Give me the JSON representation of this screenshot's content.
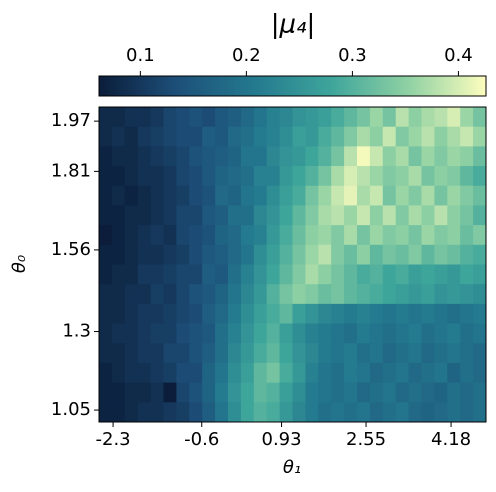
{
  "chart_data": {
    "type": "heatmap",
    "colorbar_label": "|μ₄|",
    "xlabel": "θ₁",
    "ylabel": "θ₀",
    "xlim": [
      -2.57,
      4.85
    ],
    "ylim": [
      1.012,
      2.015
    ],
    "xticks": [
      -2.3,
      -0.6,
      0.93,
      2.55,
      4.18
    ],
    "yticks": [
      1.05,
      1.3,
      1.56,
      1.81,
      1.97
    ],
    "clim": [
      0.061,
      0.426
    ],
    "cticks": [
      0.1,
      0.2,
      0.3,
      0.4
    ],
    "colorscale": [
      "#0b1d3a",
      "#1d4f79",
      "#23798e",
      "#3ea59b",
      "#8fd1a3",
      "#fdfdbe"
    ],
    "z": [
      [
        0.08,
        0.08,
        0.09,
        0.09,
        0.1,
        0.12,
        0.13,
        0.14,
        0.13,
        0.15,
        0.16,
        0.18,
        0.2,
        0.22,
        0.23,
        0.25,
        0.26,
        0.27,
        0.29,
        0.31,
        0.33,
        0.36,
        0.33,
        0.38,
        0.35,
        0.37,
        0.38,
        0.4,
        0.36,
        0.33
      ],
      [
        0.08,
        0.09,
        0.08,
        0.1,
        0.11,
        0.12,
        0.13,
        0.13,
        0.16,
        0.15,
        0.18,
        0.19,
        0.21,
        0.22,
        0.24,
        0.27,
        0.26,
        0.29,
        0.31,
        0.34,
        0.37,
        0.35,
        0.39,
        0.34,
        0.36,
        0.38,
        0.35,
        0.37,
        0.39,
        0.36
      ],
      [
        0.07,
        0.08,
        0.08,
        0.09,
        0.1,
        0.11,
        0.12,
        0.14,
        0.15,
        0.16,
        0.17,
        0.2,
        0.2,
        0.23,
        0.25,
        0.26,
        0.28,
        0.3,
        0.33,
        0.38,
        0.42,
        0.39,
        0.35,
        0.37,
        0.33,
        0.36,
        0.34,
        0.36,
        0.35,
        0.32
      ],
      [
        0.07,
        0.07,
        0.08,
        0.09,
        0.09,
        0.1,
        0.12,
        0.13,
        0.15,
        0.17,
        0.18,
        0.19,
        0.22,
        0.22,
        0.26,
        0.28,
        0.3,
        0.33,
        0.37,
        0.4,
        0.38,
        0.36,
        0.34,
        0.35,
        0.37,
        0.33,
        0.35,
        0.34,
        0.31,
        0.29
      ],
      [
        0.07,
        0.08,
        0.07,
        0.08,
        0.09,
        0.1,
        0.11,
        0.13,
        0.14,
        0.18,
        0.17,
        0.2,
        0.21,
        0.24,
        0.27,
        0.29,
        0.33,
        0.36,
        0.39,
        0.41,
        0.37,
        0.39,
        0.33,
        0.36,
        0.34,
        0.37,
        0.33,
        0.36,
        0.34,
        0.32
      ],
      [
        0.07,
        0.07,
        0.08,
        0.08,
        0.09,
        0.1,
        0.12,
        0.12,
        0.15,
        0.16,
        0.19,
        0.19,
        0.23,
        0.25,
        0.28,
        0.31,
        0.34,
        0.37,
        0.38,
        0.36,
        0.39,
        0.35,
        0.38,
        0.34,
        0.37,
        0.35,
        0.38,
        0.35,
        0.33,
        0.3
      ],
      [
        0.06,
        0.07,
        0.08,
        0.09,
        0.1,
        0.09,
        0.12,
        0.13,
        0.14,
        0.17,
        0.18,
        0.21,
        0.22,
        0.26,
        0.29,
        0.32,
        0.35,
        0.36,
        0.34,
        0.37,
        0.33,
        0.36,
        0.34,
        0.35,
        0.33,
        0.36,
        0.34,
        0.35,
        0.32,
        0.34
      ],
      [
        0.07,
        0.07,
        0.08,
        0.09,
        0.09,
        0.1,
        0.11,
        0.13,
        0.15,
        0.16,
        0.18,
        0.2,
        0.24,
        0.27,
        0.3,
        0.33,
        0.36,
        0.38,
        0.34,
        0.32,
        0.35,
        0.31,
        0.33,
        0.32,
        0.34,
        0.31,
        0.33,
        0.32,
        0.3,
        0.29
      ],
      [
        0.07,
        0.08,
        0.08,
        0.1,
        0.1,
        0.11,
        0.12,
        0.12,
        0.16,
        0.15,
        0.19,
        0.22,
        0.25,
        0.28,
        0.31,
        0.34,
        0.37,
        0.35,
        0.33,
        0.31,
        0.29,
        0.3,
        0.28,
        0.29,
        0.27,
        0.28,
        0.27,
        0.26,
        0.28,
        0.27
      ],
      [
        0.08,
        0.08,
        0.09,
        0.09,
        0.11,
        0.1,
        0.12,
        0.14,
        0.15,
        0.17,
        0.2,
        0.23,
        0.26,
        0.3,
        0.33,
        0.35,
        0.34,
        0.32,
        0.33,
        0.31,
        0.3,
        0.29,
        0.28,
        0.27,
        0.26,
        0.27,
        0.25,
        0.26,
        0.25,
        0.24
      ],
      [
        0.08,
        0.08,
        0.09,
        0.1,
        0.1,
        0.11,
        0.12,
        0.13,
        0.16,
        0.18,
        0.21,
        0.24,
        0.27,
        0.29,
        0.31,
        0.27,
        0.25,
        0.23,
        0.22,
        0.21,
        0.22,
        0.21,
        0.2,
        0.21,
        0.2,
        0.21,
        0.2,
        0.19,
        0.2,
        0.21
      ],
      [
        0.08,
        0.09,
        0.09,
        0.1,
        0.11,
        0.11,
        0.13,
        0.14,
        0.15,
        0.19,
        0.22,
        0.25,
        0.28,
        0.3,
        0.27,
        0.24,
        0.22,
        0.21,
        0.2,
        0.19,
        0.21,
        0.2,
        0.19,
        0.2,
        0.21,
        0.19,
        0.2,
        0.21,
        0.19,
        0.2
      ],
      [
        0.08,
        0.08,
        0.09,
        0.1,
        0.1,
        0.12,
        0.12,
        0.14,
        0.16,
        0.19,
        0.23,
        0.26,
        0.29,
        0.31,
        0.28,
        0.25,
        0.23,
        0.21,
        0.2,
        0.21,
        0.19,
        0.2,
        0.18,
        0.19,
        0.2,
        0.18,
        0.19,
        0.2,
        0.19,
        0.18
      ],
      [
        0.07,
        0.08,
        0.09,
        0.09,
        0.1,
        0.11,
        0.13,
        0.13,
        0.17,
        0.2,
        0.24,
        0.27,
        0.31,
        0.33,
        0.29,
        0.26,
        0.22,
        0.2,
        0.19,
        0.21,
        0.2,
        0.18,
        0.19,
        0.2,
        0.18,
        0.19,
        0.2,
        0.17,
        0.19,
        0.18
      ],
      [
        0.07,
        0.07,
        0.08,
        0.08,
        0.09,
        0.06,
        0.12,
        0.14,
        0.17,
        0.21,
        0.25,
        0.28,
        0.31,
        0.3,
        0.27,
        0.24,
        0.21,
        0.2,
        0.19,
        0.2,
        0.18,
        0.19,
        0.2,
        0.18,
        0.19,
        0.18,
        0.17,
        0.19,
        0.18,
        0.19
      ],
      [
        0.07,
        0.07,
        0.08,
        0.09,
        0.09,
        0.1,
        0.11,
        0.13,
        0.16,
        0.2,
        0.24,
        0.28,
        0.3,
        0.29,
        0.26,
        0.23,
        0.21,
        0.19,
        0.2,
        0.19,
        0.2,
        0.18,
        0.19,
        0.2,
        0.18,
        0.17,
        0.18,
        0.19,
        0.18,
        0.19
      ]
    ]
  }
}
